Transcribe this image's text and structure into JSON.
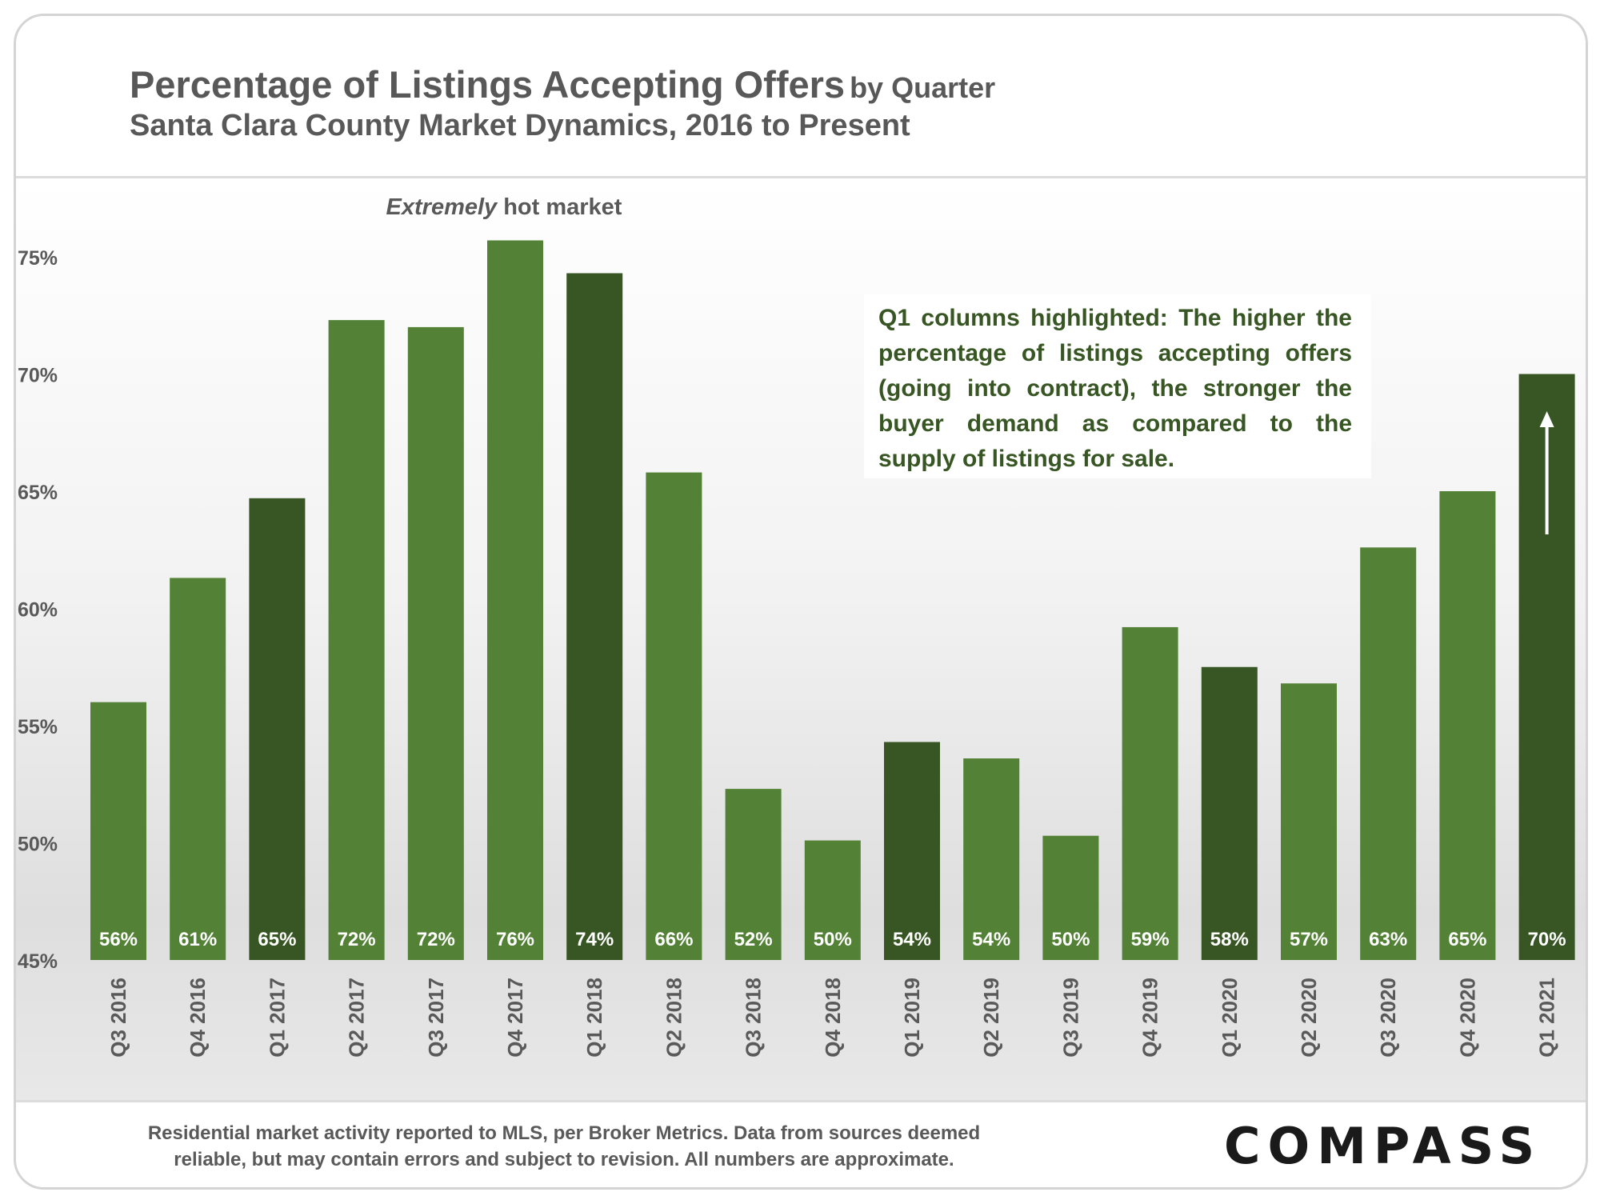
{
  "header": {
    "title": "Percentage of Listings Accepting Offers",
    "title_suffix": "by Quarter",
    "subtitle": "Santa Clara County Market Dynamics, 2016 to Present"
  },
  "annotation": {
    "hot_market_emphasis": "Extremely",
    "hot_market_rest": "hot market",
    "note": "Q1 columns highlighted: The higher the percentage of listings accepting offers (going into contract), the stronger the buyer demand as compared to the supply of listings for sale."
  },
  "footer": {
    "footnote_line1": "Residential market activity reported to MLS, per Broker Metrics. Data from sources deemed",
    "footnote_line2": "reliable, but may contain errors and subject to revision. All numbers are approximate.",
    "logo": "COMPASS"
  },
  "colors": {
    "bar": "#538135",
    "bar_q1": "#375623",
    "label": "#ffffff",
    "axis_text": "#595959",
    "annotation_text": "#375623"
  },
  "chart_data": {
    "type": "bar",
    "title": "Percentage of Listings Accepting Offers by Quarter",
    "subtitle": "Santa Clara County Market Dynamics, 2016 to Present",
    "xlabel": "",
    "ylabel": "",
    "ylim": [
      45,
      77
    ],
    "yticks": [
      45,
      50,
      55,
      60,
      65,
      70,
      75
    ],
    "ytick_labels": [
      "45%",
      "50%",
      "55%",
      "60%",
      "65%",
      "70%",
      "75%"
    ],
    "grid": false,
    "legend": "none",
    "highlight": "Q1 columns",
    "categories": [
      "Q3 2016",
      "Q4 2016",
      "Q1 2017",
      "Q2 2017",
      "Q3 2017",
      "Q4 2017",
      "Q1 2018",
      "Q2 2018",
      "Q3 2018",
      "Q4 2018",
      "Q1 2019",
      "Q2 2019",
      "Q3 2019",
      "Q4 2019",
      "Q1 2020",
      "Q2 2020",
      "Q3 2020",
      "Q4 2020",
      "Q1 2021"
    ],
    "values": [
      56.0,
      61.3,
      64.7,
      72.3,
      72.0,
      75.7,
      74.3,
      65.8,
      52.3,
      50.1,
      54.3,
      53.6,
      50.3,
      59.2,
      57.5,
      56.8,
      62.6,
      65.0,
      70.0
    ],
    "data_labels": [
      "56%",
      "61%",
      "65%",
      "72%",
      "72%",
      "76%",
      "74%",
      "66%",
      "52%",
      "50%",
      "54%",
      "54%",
      "50%",
      "59%",
      "58%",
      "57%",
      "63%",
      "65%",
      "70%"
    ],
    "q1_flags": [
      false,
      false,
      true,
      false,
      false,
      false,
      true,
      false,
      false,
      false,
      true,
      false,
      false,
      false,
      true,
      false,
      false,
      false,
      true
    ]
  }
}
